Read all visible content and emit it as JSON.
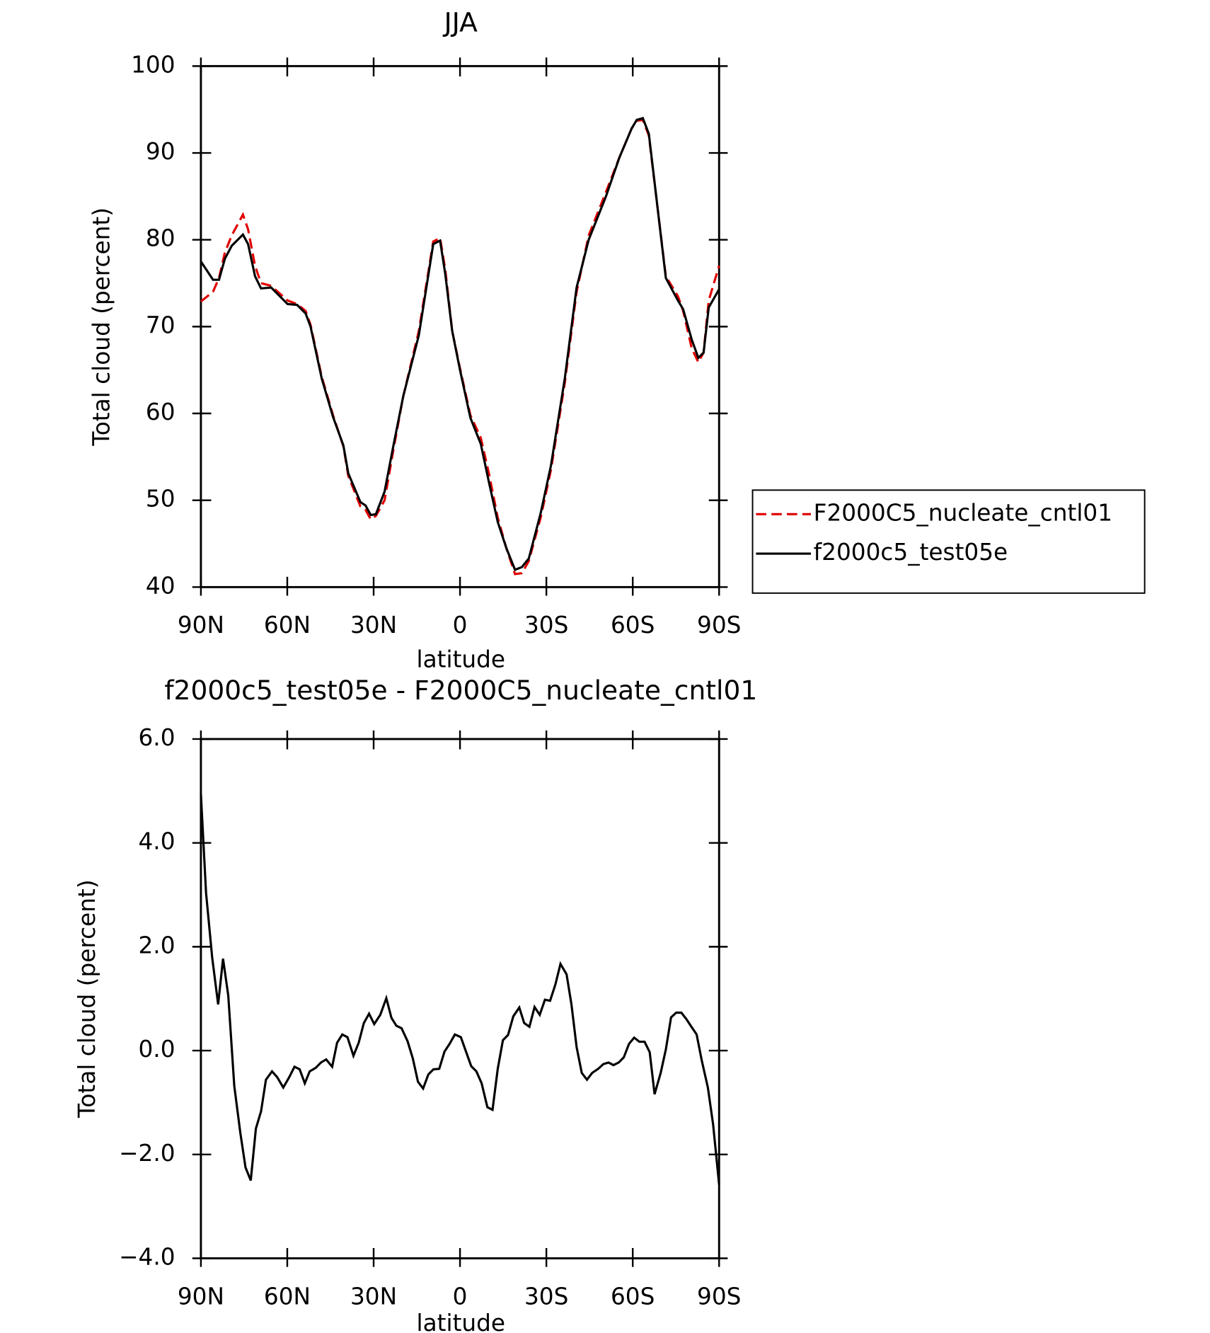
{
  "chart_data": [
    {
      "type": "line",
      "title": "JJA",
      "xlabel": "latitude",
      "ylabel": "Total cloud (percent)",
      "x": [
        90,
        85.8,
        83.7,
        81.7,
        79.3,
        75.4,
        73.6,
        71.2,
        69.1,
        65.6,
        59.9,
        56.6,
        53.6,
        51.9,
        48.0,
        44.1,
        40.5,
        38.8,
        34.6,
        32.8,
        31.0,
        29.2,
        26.2,
        23.3,
        19.7,
        14.3,
        9.3,
        6.9,
        5.1,
        2.7,
        0.0,
        -3.6,
        -7.2,
        -10.1,
        -13.1,
        -16.1,
        -19.1,
        -21.5,
        -23.9,
        -28.0,
        -31.6,
        -36.4,
        -40.5,
        -44.7,
        -50.7,
        -55.4,
        -59.6,
        -61.4,
        -63.5,
        -65.6,
        -71.5,
        -75.7,
        -77.5,
        -80.5,
        -82.8,
        -84.6,
        -86.4,
        -90
      ],
      "series": [
        {
          "name": "F2000C5_nucleate_cntl01",
          "color": "#e00000",
          "dash": true,
          "values": [
            72.9,
            74,
            75.6,
            78.5,
            80.5,
            82.9,
            81.2,
            77,
            75,
            74.7,
            73,
            72.6,
            71.8,
            70.2,
            64.2,
            59.8,
            56.2,
            52.8,
            49.3,
            48.9,
            47.8,
            48.2,
            50,
            55.5,
            62,
            69.5,
            79.8,
            80.2,
            76.5,
            69.5,
            65.2,
            59.8,
            57.2,
            53,
            48,
            44.5,
            41.5,
            41.6,
            43,
            48,
            53.5,
            63.5,
            74,
            80.5,
            85.5,
            89.5,
            92.8,
            93.7,
            93.8,
            92,
            75.8,
            73.5,
            71.8,
            67.5,
            65.9,
            67,
            73,
            77
          ]
        },
        {
          "name": "f2000c5_test05e",
          "color": "#000000",
          "dash": false,
          "values": [
            77.5,
            75.4,
            75.4,
            77.8,
            79.3,
            80.6,
            79.5,
            75.8,
            74.4,
            74.5,
            72.6,
            72.5,
            71.5,
            70.0,
            64,
            59.6,
            56.3,
            53.1,
            49.8,
            49.4,
            48.3,
            48.4,
            51,
            56,
            62,
            69,
            79.5,
            79.9,
            76,
            69.5,
            65,
            59.5,
            56.5,
            52,
            47.5,
            44.5,
            42,
            42.3,
            43.3,
            48.5,
            54,
            64,
            74.5,
            80,
            85,
            89.5,
            92.8,
            93.8,
            94,
            92.2,
            75.6,
            73,
            72,
            68.5,
            66.4,
            67,
            72.2,
            74.3
          ]
        }
      ],
      "xlim": [
        90,
        -90
      ],
      "xticks": [
        {
          "value": 90,
          "label": "90N"
        },
        {
          "value": 60,
          "label": "60N"
        },
        {
          "value": 30,
          "label": "30N"
        },
        0,
        {
          "value": -30,
          "label": "30S"
        },
        {
          "value": -60,
          "label": "60S"
        },
        {
          "value": -90,
          "label": "90S"
        }
      ],
      "ylim": [
        40,
        100
      ],
      "yticks": [
        40,
        50,
        60,
        70,
        80,
        90,
        100
      ],
      "legend": "right"
    },
    {
      "type": "line",
      "title": "f2000c5_test05e - F2000C5_nucleate_cntl01",
      "xlabel": "latitude",
      "ylabel": "Total cloud (percent)",
      "x": [
        90,
        88.2,
        86.1,
        84,
        82.3,
        80.5,
        78.4,
        76.3,
        74.5,
        72.7,
        70.9,
        69.1,
        67.4,
        65.3,
        63.5,
        61.4,
        59.3,
        57.5,
        55.7,
        53.9,
        52.2,
        50.1,
        48.3,
        46.5,
        44.4,
        42.7,
        40.9,
        39.1,
        37,
        35.2,
        33.4,
        31.6,
        29.8,
        27.7,
        25.6,
        23.8,
        22.1,
        20.3,
        18.2,
        16.4,
        14.6,
        12.8,
        11,
        9.2,
        7.2,
        5.4,
        3.6,
        1.8,
        -0.3,
        -2.1,
        -3.9,
        -5.7,
        -7.5,
        -9.5,
        -11.3,
        -13.1,
        -14.9,
        -16.7,
        -18.5,
        -20.6,
        -22.3,
        -24.1,
        -25.9,
        -27.7,
        -29.5,
        -31.3,
        -33.1,
        -34.9,
        -37,
        -38.7,
        -40.5,
        -42.3,
        -44.1,
        -45.9,
        -48,
        -49.8,
        -51.6,
        -53.3,
        -55.1,
        -56.9,
        -58.7,
        -60.5,
        -62.3,
        -64.1,
        -65.9,
        -67.6,
        -69.7,
        -71.5,
        -73.3,
        -75.1,
        -76.9,
        -78.7,
        -80.5,
        -82.2,
        -84,
        -86.1,
        -87.9,
        -90
      ],
      "series": [
        {
          "color": "#000000",
          "dash": false,
          "values": [
            4.94,
            3.04,
            1.8,
            0.89,
            1.77,
            1.06,
            -0.68,
            -1.59,
            -2.25,
            -2.5,
            -1.5,
            -1.17,
            -0.56,
            -0.4,
            -0.51,
            -0.71,
            -0.51,
            -0.31,
            -0.36,
            -0.63,
            -0.4,
            -0.33,
            -0.23,
            -0.17,
            -0.31,
            0.15,
            0.31,
            0.26,
            -0.1,
            0.15,
            0.53,
            0.71,
            0.51,
            0.69,
            1.01,
            0.63,
            0.48,
            0.43,
            0.18,
            -0.15,
            -0.6,
            -0.73,
            -0.46,
            -0.36,
            -0.35,
            -0.02,
            0.13,
            0.31,
            0.26,
            -0.02,
            -0.3,
            -0.4,
            -0.63,
            -1.09,
            -1.14,
            -0.35,
            0.2,
            0.3,
            0.66,
            0.83,
            0.53,
            0.46,
            0.84,
            0.69,
            0.98,
            0.96,
            1.27,
            1.67,
            1.47,
            0.89,
            0.07,
            -0.43,
            -0.56,
            -0.43,
            -0.35,
            -0.26,
            -0.23,
            -0.28,
            -0.23,
            -0.13,
            0.13,
            0.25,
            0.17,
            0.17,
            -0.03,
            -0.84,
            -0.43,
            0.02,
            0.64,
            0.73,
            0.73,
            0.6,
            0.45,
            0.31,
            -0.2,
            -0.71,
            -1.42,
            -2.58
          ]
        }
      ],
      "xlim": [
        90,
        -90
      ],
      "xticks": [
        {
          "value": 90,
          "label": "90N"
        },
        {
          "value": 60,
          "label": "60N"
        },
        {
          "value": 30,
          "label": "30N"
        },
        0,
        {
          "value": -30,
          "label": "30S"
        },
        {
          "value": -60,
          "label": "60S"
        },
        {
          "value": -90,
          "label": "90S"
        }
      ],
      "ylim": [
        -4,
        6
      ],
      "yticks": [
        {
          "value": -4,
          "label": "−4.0"
        },
        {
          "value": -2,
          "label": "−2.0"
        },
        {
          "value": 0,
          "label": "0.0"
        },
        {
          "value": 2,
          "label": "2.0"
        },
        {
          "value": 4,
          "label": "4.0"
        },
        {
          "value": 6,
          "label": "6.0"
        }
      ]
    }
  ]
}
